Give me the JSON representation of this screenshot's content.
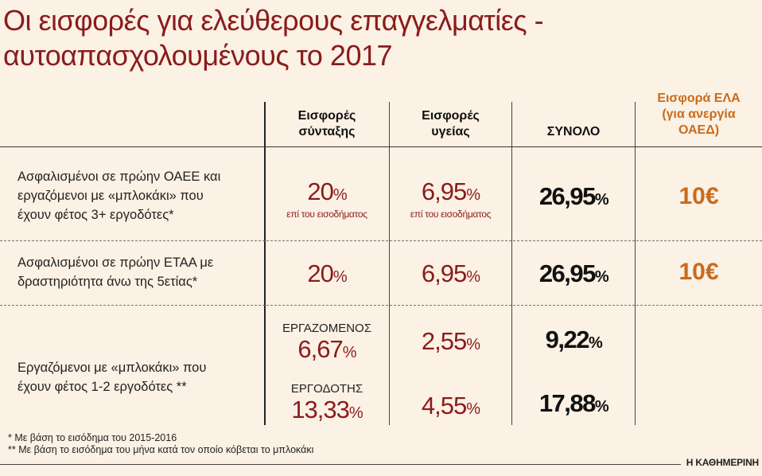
{
  "title": {
    "line1": "Οι εισφορές για ελεύθερους επαγγελματίες -",
    "line2": "αυτοαπασχολουμένους το 2017"
  },
  "headers": {
    "pension": [
      "Εισφορές",
      "σύνταξης"
    ],
    "health": [
      "Εισφορές",
      "υγείας"
    ],
    "total": "ΣΥΝΟΛΟ",
    "ela": [
      "Εισφορά ΕΛΑ",
      "(για ανεργία",
      "ΟΑΕΔ)"
    ]
  },
  "rows": [
    {
      "label": [
        "Ασφαλισμένοι σε πρώην ΟΑΕΕ και",
        "εργαζόμενοι με «μπλοκάκι» που",
        "έχουν φέτος 3+ εργοδότες*"
      ],
      "pension": "20",
      "pension_sub": "επί του εισοδήματος",
      "health": "6,95",
      "health_sub": "επί του εισοδήματος",
      "total": "26,95",
      "ela": "10€"
    },
    {
      "label": [
        "Ασφαλισμένοι σε πρώην ΕΤΑΑ με",
        "δραστηριότητα άνω της 5ετίας*"
      ],
      "pension": "20",
      "health": "6,95",
      "total": "26,95",
      "ela": "10€"
    },
    {
      "label": [
        "Εργαζόμενοι με «μπλοκάκι» που",
        "έχουν φέτος 1-2 εργοδότες **"
      ],
      "employee_tag": "ΕΡΓΑΖΟΜΕΝΟΣ",
      "employee_pension": "6,67",
      "employee_health": "2,55",
      "employee_total": "9,22",
      "employer_tag": "ΕΡΓΟΔΟΤΗΣ",
      "employer_pension": "13,33",
      "employer_health": "4,55",
      "employer_total": "17,88"
    }
  ],
  "percent_sign": "%",
  "notes": [
    "* Με βάση το εισόδημα του 2015-2016",
    "** Με βάση το εισόδημα του μήνα κατά τον οποίο κόβεται το μπλοκάκι"
  ],
  "brand": "Η ΚΑΘΗΜΕΡΙΝΗ",
  "colors": {
    "title": "#8a1c1c",
    "ela": "#c96b1d",
    "background": "#fbf1e4"
  }
}
